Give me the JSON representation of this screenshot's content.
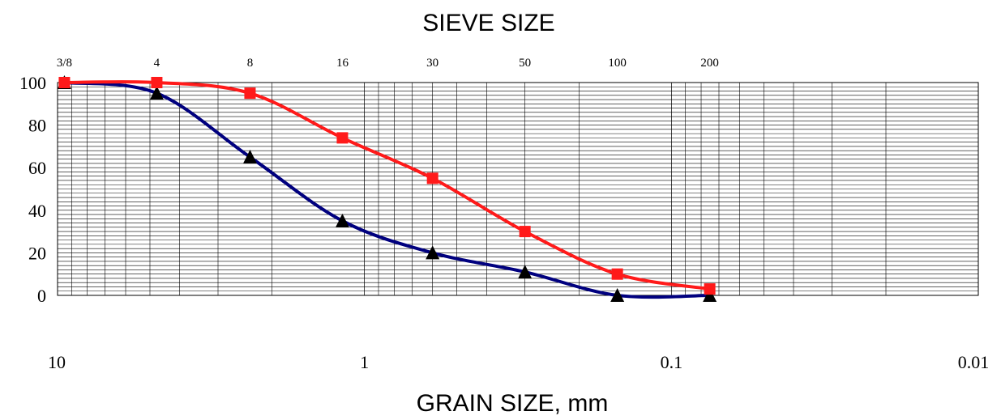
{
  "chart_data": {
    "type": "line",
    "title": "SIEVE SIZE",
    "xlabel": "GRAIN SIZE, mm",
    "ylabel": "",
    "x_scale": "log",
    "x_reversed": true,
    "xlim": [
      10,
      0.01
    ],
    "ylim": [
      0,
      100
    ],
    "grid": true,
    "legend": "none",
    "x_tick_labels": [
      "10",
      "1",
      "0.1",
      "0.01"
    ],
    "x_ticks": [
      10,
      1,
      0.1,
      0.01
    ],
    "y_ticks": [
      0,
      20,
      40,
      60,
      80,
      100
    ],
    "y_tick_labels": [
      "0",
      "20",
      "40",
      "60",
      "80",
      "100"
    ],
    "sieve_labels": [
      {
        "label": "3/8",
        "size": 9.5
      },
      {
        "label": "4",
        "size": 4.75
      },
      {
        "label": "8",
        "size": 2.36
      },
      {
        "label": "16",
        "size": 1.18
      },
      {
        "label": "30",
        "size": 0.6
      },
      {
        "label": "50",
        "size": 0.3
      },
      {
        "label": "100",
        "size": 0.15
      },
      {
        "label": "200",
        "size": 0.075
      }
    ],
    "series": [
      {
        "color": "#ff1a1a",
        "marker": "square",
        "x": [
          9.5,
          4.75,
          2.36,
          1.18,
          0.6,
          0.3,
          0.15,
          0.075
        ],
        "y": [
          100,
          100,
          95,
          74,
          55,
          30,
          10,
          3
        ]
      },
      {
        "color": "#00007f",
        "marker": "triangle",
        "x": [
          9.5,
          4.75,
          2.36,
          1.18,
          0.6,
          0.3,
          0.15,
          0.075
        ],
        "y": [
          100,
          95,
          65,
          35,
          20,
          11,
          0,
          0
        ]
      }
    ]
  }
}
